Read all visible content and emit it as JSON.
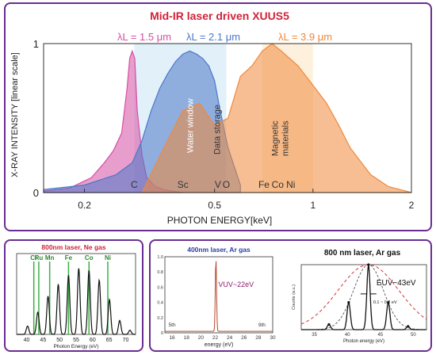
{
  "chart_data": [
    {
      "type": "area",
      "title": "Mid-IR laser driven XUUS5",
      "xlabel": "PHOTON ENERGY[keV]",
      "ylabel": "X-RAY INTENSITY [linear scale]",
      "x_scale": "log",
      "xlim": [
        0.15,
        2.0
      ],
      "ylim": [
        0,
        1
      ],
      "x_ticks": [
        "0.2",
        "0.5",
        "1",
        "2"
      ],
      "y_ticks": [
        "0",
        "1"
      ],
      "series": [
        {
          "name": "λL = 1.5 μm",
          "color": "#d64fa4",
          "x": [
            0.15,
            0.18,
            0.21,
            0.23,
            0.245,
            0.26,
            0.27,
            0.275,
            0.28,
            0.285,
            0.29,
            0.3,
            0.31,
            0.33,
            0.35,
            0.37,
            0.4
          ],
          "y": [
            0.01,
            0.03,
            0.1,
            0.2,
            0.28,
            0.4,
            0.7,
            0.9,
            0.95,
            0.9,
            0.55,
            0.25,
            0.1,
            0.04,
            0.02,
            0.01,
            0.0
          ]
        },
        {
          "name": "λL = 2.1 μm",
          "color": "#4a78c8",
          "x": [
            0.15,
            0.2,
            0.25,
            0.28,
            0.3,
            0.32,
            0.34,
            0.36,
            0.38,
            0.4,
            0.42,
            0.44,
            0.46,
            0.48,
            0.5,
            0.52,
            0.55,
            0.6
          ],
          "y": [
            0.02,
            0.05,
            0.12,
            0.2,
            0.35,
            0.55,
            0.7,
            0.8,
            0.88,
            0.93,
            0.95,
            0.93,
            0.9,
            0.85,
            0.75,
            0.55,
            0.3,
            0.05
          ]
        },
        {
          "name": "λL = 3.9 μm",
          "color": "#f0883a",
          "x": [
            0.3,
            0.35,
            0.4,
            0.45,
            0.5,
            0.55,
            0.6,
            0.65,
            0.7,
            0.75,
            0.8,
            0.9,
            1.0,
            1.1,
            1.2,
            1.3,
            1.5,
            1.7,
            2.0
          ],
          "y": [
            0.0,
            0.3,
            0.55,
            0.6,
            0.45,
            0.5,
            0.78,
            0.85,
            0.95,
            1.0,
            0.95,
            0.85,
            0.72,
            0.6,
            0.45,
            0.3,
            0.12,
            0.04,
            0.0
          ]
        }
      ],
      "edge_labels": [
        {
          "text": "C",
          "x": 0.284
        },
        {
          "text": "Sc",
          "x": 0.4
        },
        {
          "text": "V",
          "x": 0.512
        },
        {
          "text": "O",
          "x": 0.543
        },
        {
          "text": "Fe",
          "x": 0.708
        },
        {
          "text": "Co",
          "x": 0.78
        },
        {
          "text": "Ni",
          "x": 0.855
        }
      ],
      "region_labels": [
        {
          "text": "Water window",
          "color": "#ffffff"
        },
        {
          "text": "Data storage",
          "color": "#333333"
        },
        {
          "text": "Magnetic materials",
          "color": "#333333"
        }
      ]
    },
    {
      "type": "line",
      "title": "800nm laser, Ne gas",
      "xlabel": "Photon Energy (eV)",
      "x_ticks": [
        "40",
        "45",
        "50",
        "55",
        "60",
        "65",
        "70"
      ],
      "xlim": [
        37,
        73
      ],
      "element_lines": [
        {
          "label": "Cr",
          "x": 42.2
        },
        {
          "label": "Ru",
          "x": 43.7
        },
        {
          "label": "Mn",
          "x": 47.0
        },
        {
          "label": "Fe",
          "x": 52.7
        },
        {
          "label": "Co",
          "x": 58.9
        },
        {
          "label": "Ni",
          "x": 64.6
        }
      ],
      "harmonic_peaks": [
        {
          "x": 40.3,
          "y": 0.12
        },
        {
          "x": 43.4,
          "y": 0.32
        },
        {
          "x": 46.5,
          "y": 0.55
        },
        {
          "x": 49.6,
          "y": 0.72
        },
        {
          "x": 52.7,
          "y": 0.85
        },
        {
          "x": 55.8,
          "y": 0.95
        },
        {
          "x": 58.9,
          "y": 0.92
        },
        {
          "x": 62.0,
          "y": 0.78
        },
        {
          "x": 65.1,
          "y": 0.5
        },
        {
          "x": 68.2,
          "y": 0.2
        },
        {
          "x": 71.3,
          "y": 0.06
        }
      ]
    },
    {
      "type": "line",
      "title": "400nm laser, Ar gas",
      "xlabel": "energy (eV)",
      "xlim": [
        15,
        30
      ],
      "ylim": [
        0,
        1.0
      ],
      "x_ticks": [
        "16",
        "18",
        "20",
        "22",
        "24",
        "26",
        "28",
        "30"
      ],
      "y_ticks": [
        "0",
        "0.2",
        "0.4",
        "0.6",
        "0.8",
        "1.0"
      ],
      "peak_label": "VUV~22eV",
      "peak_x": 22.1,
      "harmonic_labels": [
        {
          "text": "5th",
          "x": 16.0
        },
        {
          "text": "9th",
          "x": 28.5
        }
      ]
    },
    {
      "type": "line",
      "title": "800 nm laser, Ar gas",
      "xlabel": "Photon energy (eV)",
      "ylabel": "Counts (a.u.)",
      "xlim": [
        33,
        52
      ],
      "x_ticks": [
        "35",
        "40",
        "45",
        "50"
      ],
      "peak_label": "EUV~43eV",
      "width_label": "0.1 ~ 0.2 eV",
      "peaks": [
        {
          "x": 37.2,
          "y": 0.08
        },
        {
          "x": 40.2,
          "y": 0.42
        },
        {
          "x": 43.2,
          "y": 1.0
        },
        {
          "x": 46.2,
          "y": 0.42
        },
        {
          "x": 49.2,
          "y": 0.05
        }
      ]
    }
  ]
}
